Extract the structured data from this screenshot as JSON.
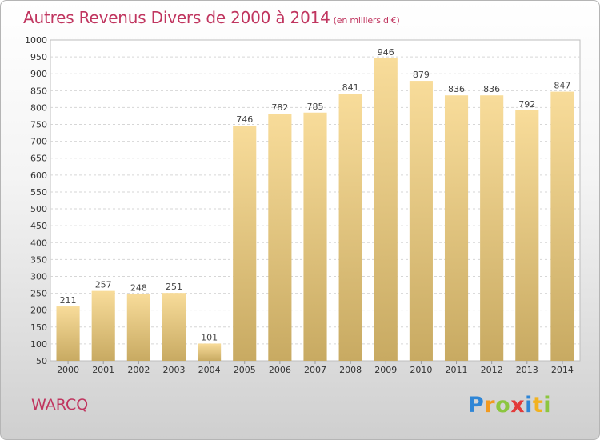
{
  "header": {
    "title": "Autres Revenus Divers de 2000 à 2014",
    "unit": "(en milliers d'€)"
  },
  "commune": "WARCQ",
  "logo": {
    "letters": [
      {
        "char": "P",
        "color": "#2f86d6"
      },
      {
        "char": "r",
        "color": "#f29a1f"
      },
      {
        "char": "o",
        "color": "#8cc63f"
      },
      {
        "char": "x",
        "color": "#e23a3a"
      },
      {
        "char": "i",
        "color": "#2f86d6"
      },
      {
        "char": "t",
        "color": "#f2b21f"
      },
      {
        "char": "i",
        "color": "#8cc63f"
      }
    ]
  },
  "chart_data": {
    "type": "bar",
    "categories": [
      "2000",
      "2001",
      "2002",
      "2003",
      "2004",
      "2005",
      "2006",
      "2007",
      "2008",
      "2009",
      "2010",
      "2011",
      "2012",
      "2013",
      "2014"
    ],
    "values": [
      211,
      257,
      248,
      251,
      101,
      746,
      782,
      785,
      841,
      946,
      879,
      836,
      836,
      792,
      847
    ],
    "ylim": [
      50,
      1000
    ],
    "yticks": [
      50,
      100,
      150,
      200,
      250,
      300,
      350,
      400,
      450,
      500,
      550,
      600,
      650,
      700,
      750,
      800,
      850,
      900,
      950,
      1000
    ],
    "grid": true,
    "bar_color_top": "#f8dc9a",
    "bar_color_bottom": "#c8aa62"
  }
}
